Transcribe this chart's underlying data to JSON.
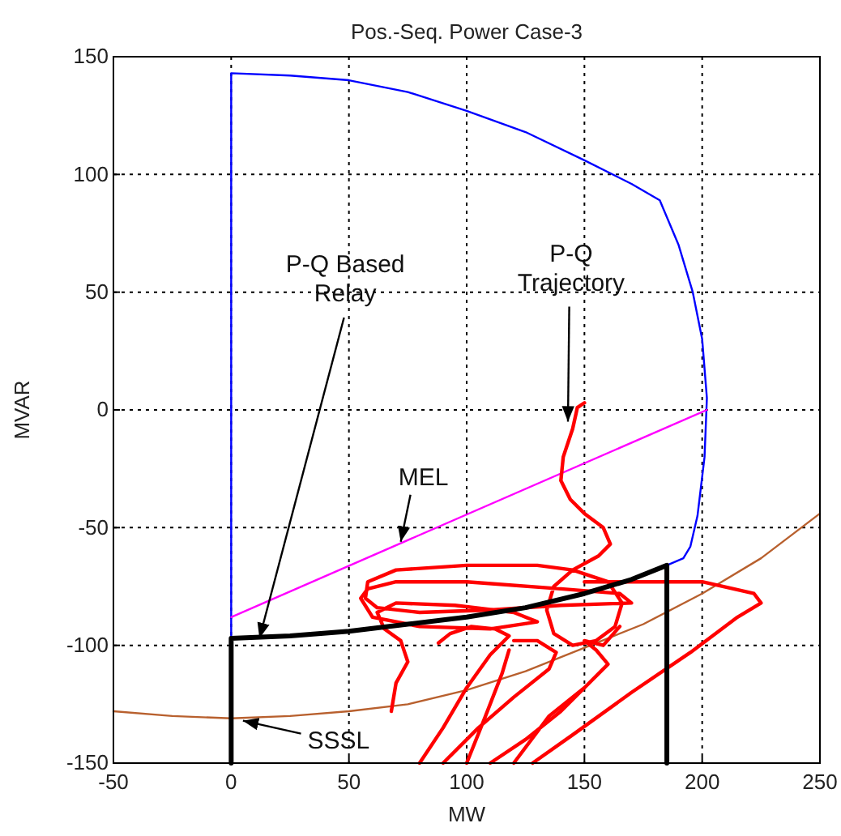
{
  "chart_data": {
    "type": "line",
    "title": "Pos.-Seq. Power  Case-3",
    "xlabel": "MW",
    "ylabel": "MVAR",
    "xlim": [
      -50,
      250
    ],
    "ylim": [
      -150,
      150
    ],
    "xticks": [
      -50,
      0,
      50,
      100,
      150,
      200,
      250
    ],
    "yticks": [
      -150,
      -100,
      -50,
      0,
      50,
      100,
      150
    ],
    "grid": true,
    "marker": "none",
    "line_style": "solid",
    "series": [
      {
        "color": "#0000ff",
        "x": [
          0,
          0,
          25,
          50,
          75,
          100,
          125,
          150,
          170,
          182,
          190,
          196,
          200,
          202,
          201,
          198,
          195,
          192,
          185
        ],
        "values": [
          -97,
          143,
          142,
          140,
          135,
          127,
          118,
          106,
          96,
          89,
          70,
          50,
          30,
          5,
          -20,
          -45,
          -58,
          -63,
          -66
        ]
      },
      {
        "color": "#ff00ff",
        "x": [
          0,
          202
        ],
        "values": [
          -88,
          0
        ]
      },
      {
        "color": "#b8602e",
        "x": [
          -50,
          -25,
          0,
          25,
          50,
          75,
          100,
          125,
          150,
          175,
          200,
          225,
          250
        ],
        "values": [
          -128,
          -130,
          -131,
          -130,
          -128,
          -125,
          -119,
          -111,
          -101,
          -91,
          -78,
          -63,
          -44
        ]
      },
      {
        "color": "#ff0000",
        "x": [
          150,
          147,
          145,
          141,
          140,
          144,
          150,
          158,
          161,
          156,
          145,
          137,
          134,
          137,
          145,
          155,
          163,
          166,
          160,
          145,
          130,
          100,
          70,
          58,
          57,
          62,
          80,
          110,
          140,
          170,
          165,
          140,
          100,
          70,
          58,
          55,
          60,
          80,
          110,
          130,
          120,
          95,
          70,
          62,
          65,
          72,
          75,
          70,
          68,
          null,
          150,
          175,
          200,
          222,
          225,
          215,
          195,
          170,
          145,
          128,
          null,
          80,
          90,
          100,
          110,
          118,
          112,
          102,
          93,
          88,
          null,
          90,
          105,
          120,
          135,
          138,
          130,
          120,
          null,
          100,
          108,
          115,
          118,
          null,
          120,
          135,
          150,
          160,
          155,
          150,
          158,
          165,
          null,
          110,
          125,
          140,
          150
        ],
        "values": [
          3,
          1,
          -8,
          -20,
          -30,
          -38,
          -44,
          -50,
          -57,
          -62,
          -68,
          -75,
          -85,
          -95,
          -100,
          -98,
          -92,
          -82,
          -73,
          -68,
          -66,
          -66,
          -68,
          -73,
          -80,
          -84,
          -86,
          -85,
          -83,
          -82,
          -78,
          -76,
          -73,
          -73,
          -76,
          -80,
          -88,
          -92,
          -93,
          -90,
          -86,
          -83,
          -82,
          -86,
          -93,
          -98,
          -107,
          -116,
          -128,
          null,
          -73,
          -73,
          -73,
          -78,
          -82,
          -88,
          -103,
          -120,
          -138,
          -150,
          null,
          -150,
          -135,
          -118,
          -104,
          -96,
          -93,
          -92,
          -95,
          -99,
          null,
          -150,
          -135,
          -122,
          -110,
          -103,
          -98,
          -98,
          null,
          -150,
          -130,
          -112,
          -102,
          null,
          -150,
          -130,
          -118,
          -108,
          -102,
          -98,
          -100,
          -92,
          null,
          -150,
          -140,
          -128,
          -118
        ]
      },
      {
        "color": "#000000",
        "x": [
          0,
          0,
          25,
          50,
          75,
          100,
          125,
          150,
          170,
          185,
          185
        ],
        "values": [
          -150,
          -97,
          -96,
          -94,
          -91,
          -88,
          -84,
          -78,
          -72,
          -66,
          -150
        ]
      }
    ],
    "annotations": [
      {
        "text": "P-Q Based\nRelay",
        "x": 12,
        "y": -97
      },
      {
        "text": "P-Q\nTrajectory",
        "x": 143,
        "y": -5
      },
      {
        "text": "MEL",
        "x": 72,
        "y": -56
      },
      {
        "text": "SSSL",
        "x": 5,
        "y": -132
      }
    ]
  }
}
